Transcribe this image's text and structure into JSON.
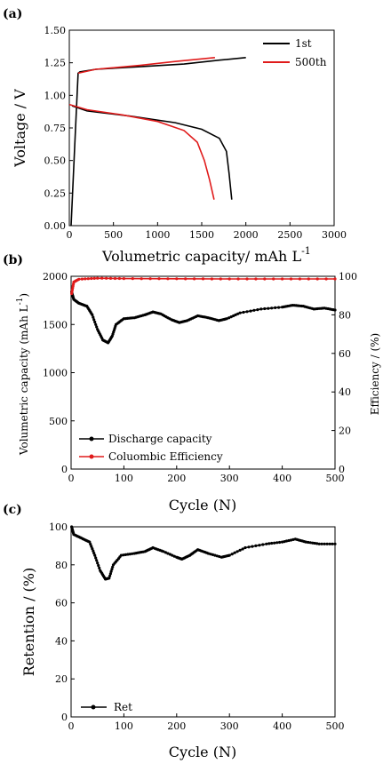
{
  "colors": {
    "black": "#000000",
    "red": "#e01b1b"
  },
  "chart_data": [
    {
      "panel": "(a)",
      "type": "line",
      "xlabel": "Volumetric capacity/ mAh L",
      "xlabel_sup": "-1",
      "ylabel": "Voltage / V",
      "xlim": [
        0,
        3000
      ],
      "ylim": [
        0,
        1.5
      ],
      "xticks": [
        "0",
        "500",
        "1000",
        "1500",
        "2000",
        "2500",
        "3000"
      ],
      "yticks": [
        "0.00",
        "0.25",
        "0.50",
        "0.75",
        "1.00",
        "1.25",
        "1.50"
      ],
      "legend_position": "top-right",
      "series": [
        {
          "name": "1st",
          "color": "#000000",
          "charge": [
            [
              20,
              0
            ],
            [
              60,
              0.6
            ],
            [
              100,
              1.17
            ],
            [
              120,
              1.18
            ],
            [
              300,
              1.2
            ],
            [
              800,
              1.22
            ],
            [
              1300,
              1.24
            ],
            [
              1700,
              1.27
            ],
            [
              2000,
              1.29
            ]
          ],
          "discharge": [
            [
              30,
              0.92
            ],
            [
              200,
              0.88
            ],
            [
              700,
              0.84
            ],
            [
              1200,
              0.79
            ],
            [
              1500,
              0.74
            ],
            [
              1700,
              0.67
            ],
            [
              1780,
              0.57
            ],
            [
              1810,
              0.4
            ],
            [
              1840,
              0.2
            ]
          ]
        },
        {
          "name": "500th",
          "color": "#e01b1b",
          "charge": [
            [
              100,
              1.17
            ],
            [
              300,
              1.2
            ],
            [
              800,
              1.23
            ],
            [
              1200,
              1.26
            ],
            [
              1650,
              1.29
            ]
          ],
          "discharge": [
            [
              0,
              0.93
            ],
            [
              200,
              0.89
            ],
            [
              600,
              0.85
            ],
            [
              1000,
              0.8
            ],
            [
              1300,
              0.73
            ],
            [
              1450,
              0.64
            ],
            [
              1530,
              0.5
            ],
            [
              1590,
              0.35
            ],
            [
              1640,
              0.2
            ]
          ]
        }
      ]
    },
    {
      "panel": "(b)",
      "type": "line",
      "xlabel": "Cycle (N)",
      "ylabel": "Volumetric capacity (mAh L",
      "ylabel_sup": "-1",
      "ylabel_end": ")",
      "y2label": "Efficiency / (%)",
      "xlim": [
        0,
        500
      ],
      "ylim": [
        0,
        2000
      ],
      "y2lim": [
        0,
        100
      ],
      "xticks": [
        "0",
        "100",
        "200",
        "300",
        "400",
        "500"
      ],
      "yticks": [
        "0",
        "500",
        "1000",
        "1500",
        "2000"
      ],
      "y2ticks": [
        "0",
        "20",
        "40",
        "60",
        "80",
        "100"
      ],
      "legend_position": "bottom-left",
      "series": [
        {
          "name": "Discharge  capacity",
          "color": "#000000",
          "axis": "left",
          "points": [
            [
              1,
              1840
            ],
            [
              5,
              1760
            ],
            [
              15,
              1720
            ],
            [
              30,
              1690
            ],
            [
              40,
              1600
            ],
            [
              50,
              1450
            ],
            [
              60,
              1340
            ],
            [
              70,
              1310
            ],
            [
              78,
              1380
            ],
            [
              85,
              1500
            ],
            [
              100,
              1560
            ],
            [
              120,
              1570
            ],
            [
              140,
              1600
            ],
            [
              155,
              1630
            ],
            [
              170,
              1610
            ],
            [
              190,
              1550
            ],
            [
              205,
              1520
            ],
            [
              220,
              1540
            ],
            [
              240,
              1590
            ],
            [
              260,
              1570
            ],
            [
              280,
              1540
            ],
            [
              295,
              1560
            ],
            [
              320,
              1620
            ],
            [
              360,
              1660
            ],
            [
              400,
              1680
            ],
            [
              420,
              1700
            ],
            [
              440,
              1690
            ],
            [
              460,
              1660
            ],
            [
              480,
              1670
            ],
            [
              500,
              1650
            ]
          ]
        },
        {
          "name": "Coluombic Efficiency",
          "color": "#e01b1b",
          "axis": "right",
          "points": [
            [
              1,
              91
            ],
            [
              5,
              97
            ],
            [
              15,
              98.5
            ],
            [
              50,
              99
            ],
            [
              100,
              98.8
            ],
            [
              200,
              98.7
            ],
            [
              300,
              98.6
            ],
            [
              400,
              98.6
            ],
            [
              500,
              98.6
            ]
          ]
        }
      ]
    },
    {
      "panel": "(c)",
      "type": "line",
      "xlabel": "Cycle (N)",
      "ylabel": "Retention / (%)",
      "xlim": [
        0,
        500
      ],
      "ylim": [
        0,
        100
      ],
      "xticks": [
        "0",
        "100",
        "200",
        "300",
        "400",
        "500"
      ],
      "yticks": [
        "0",
        "20",
        "40",
        "60",
        "80",
        "100"
      ],
      "legend_position": "bottom-left",
      "series": [
        {
          "name": "Ret",
          "color": "#000000",
          "points": [
            [
              1,
              100
            ],
            [
              5,
              96
            ],
            [
              20,
              94
            ],
            [
              35,
              92
            ],
            [
              45,
              85
            ],
            [
              55,
              77
            ],
            [
              65,
              72.5
            ],
            [
              72,
              73
            ],
            [
              80,
              80
            ],
            [
              95,
              85
            ],
            [
              120,
              86
            ],
            [
              140,
              87
            ],
            [
              155,
              89
            ],
            [
              175,
              87
            ],
            [
              200,
              84
            ],
            [
              210,
              83
            ],
            [
              225,
              85
            ],
            [
              240,
              88
            ],
            [
              260,
              86
            ],
            [
              285,
              84
            ],
            [
              300,
              85
            ],
            [
              330,
              89
            ],
            [
              370,
              91
            ],
            [
              400,
              92
            ],
            [
              425,
              93.5
            ],
            [
              445,
              92
            ],
            [
              470,
              91
            ],
            [
              500,
              91
            ]
          ]
        }
      ]
    }
  ]
}
